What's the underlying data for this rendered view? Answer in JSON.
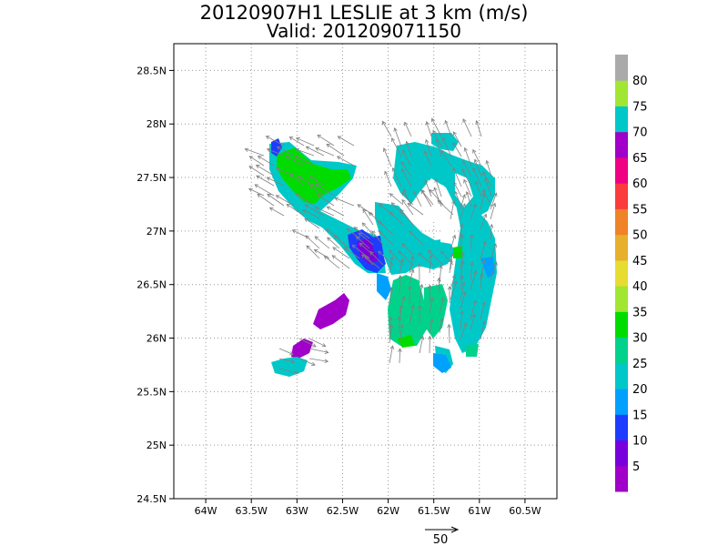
{
  "title": {
    "line1": "20120907H1 LESLIE at 3 km (m/s)",
    "line2": "Valid: 201209071150"
  },
  "map": {
    "lat_ticks": [
      "28.5N",
      "28N",
      "27.5N",
      "27N",
      "26.5N",
      "26N",
      "25.5N",
      "25N",
      "24.5N"
    ],
    "lon_ticks": [
      "64W",
      "63.5W",
      "63W",
      "62.5W",
      "62W",
      "61.5W",
      "61W",
      "60.5W"
    ],
    "lat_range": [
      24.5,
      28.75
    ],
    "lon_range": [
      -64.35,
      -60.15
    ],
    "grid": true
  },
  "colorbar": {
    "labels": [
      "5",
      "10",
      "15",
      "20",
      "25",
      "30",
      "35",
      "40",
      "45",
      "50",
      "55",
      "60",
      "65",
      "70",
      "75",
      "80"
    ],
    "colors": [
      "#a000c8",
      "#7800dc",
      "#1e3cff",
      "#00a0ff",
      "#00c8c8",
      "#00d28c",
      "#00dc00",
      "#a0e632",
      "#e6dc32",
      "#e6af2d",
      "#f08228",
      "#fa3c3c",
      "#f00082",
      "#a000c8",
      "#00c8c8",
      "#a0e632",
      "#aaaaaa"
    ]
  },
  "reference_vector": {
    "label": "50"
  }
}
